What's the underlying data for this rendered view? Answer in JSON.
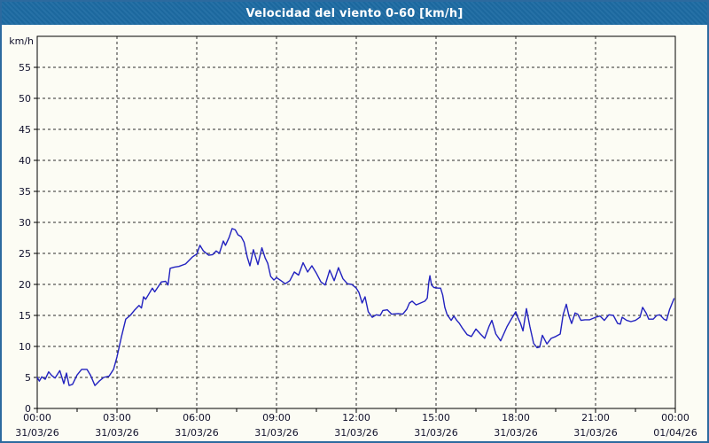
{
  "title_bar": {
    "text": "Velocidad del viento 0-60 [km/h]",
    "bg_color": "#1d6ba3",
    "fg_color": "#ffffff"
  },
  "frame": {
    "outer_border_color": "#2c6a9f",
    "page_bg_color": "#fcfcf4",
    "grid_color": "#2b2b2b",
    "axis_color": "#000000",
    "label_color": "#11112b"
  },
  "chart_data": {
    "type": "line",
    "title": "Velocidad del viento 0-60 [km/h]",
    "xlabel": "",
    "ylabel": "km/h",
    "ylim": [
      0,
      60
    ],
    "xlim_hours": [
      0,
      24
    ],
    "grid": true,
    "legend": "none",
    "line_color": "#2121bf",
    "y_ticks": [
      0,
      5,
      10,
      15,
      20,
      25,
      30,
      35,
      40,
      45,
      50,
      55
    ],
    "x_ticks": [
      {
        "hour": 0,
        "time": "00:00",
        "date": "31/03/26"
      },
      {
        "hour": 3,
        "time": "03:00",
        "date": "31/03/26"
      },
      {
        "hour": 6,
        "time": "06:00",
        "date": "31/03/26"
      },
      {
        "hour": 9,
        "time": "09:00",
        "date": "31/03/26"
      },
      {
        "hour": 12,
        "time": "12:00",
        "date": "31/03/26"
      },
      {
        "hour": 15,
        "time": "15:00",
        "date": "31/03/26"
      },
      {
        "hour": 18,
        "time": "18:00",
        "date": "31/03/26"
      },
      {
        "hour": 21,
        "time": "21:00",
        "date": "31/03/26"
      },
      {
        "hour": 24,
        "time": "00:00",
        "date": "01/04/26"
      }
    ],
    "x_minor_ticks_hours": [
      1.5,
      4.5,
      7.5,
      10.5,
      13.5,
      16.5,
      19.5,
      22.5
    ],
    "series": [
      {
        "name": "Velocidad del viento",
        "points": [
          [
            0,
            5.0
          ],
          [
            0.08,
            4.4
          ],
          [
            0.17,
            5.1
          ],
          [
            0.3,
            4.7
          ],
          [
            0.43,
            5.9
          ],
          [
            0.55,
            5.3
          ],
          [
            0.67,
            4.9
          ],
          [
            0.85,
            6.1
          ],
          [
            1.0,
            4.0
          ],
          [
            1.1,
            5.7
          ],
          [
            1.2,
            3.7
          ],
          [
            1.33,
            3.9
          ],
          [
            1.5,
            5.4
          ],
          [
            1.67,
            6.3
          ],
          [
            1.87,
            6.3
          ],
          [
            2.0,
            5.4
          ],
          [
            2.17,
            3.7
          ],
          [
            2.33,
            4.4
          ],
          [
            2.5,
            5.0
          ],
          [
            2.7,
            5.2
          ],
          [
            2.87,
            6.3
          ],
          [
            3.0,
            8.3
          ],
          [
            3.17,
            11.6
          ],
          [
            3.33,
            14.4
          ],
          [
            3.5,
            15.0
          ],
          [
            3.67,
            15.9
          ],
          [
            3.83,
            16.6
          ],
          [
            3.92,
            16.2
          ],
          [
            4.0,
            18.0
          ],
          [
            4.08,
            17.6
          ],
          [
            4.33,
            19.4
          ],
          [
            4.42,
            18.8
          ],
          [
            4.67,
            20.4
          ],
          [
            4.83,
            20.5
          ],
          [
            4.92,
            19.9
          ],
          [
            5.0,
            22.6
          ],
          [
            5.17,
            22.8
          ],
          [
            5.33,
            22.9
          ],
          [
            5.58,
            23.3
          ],
          [
            5.83,
            24.4
          ],
          [
            6.0,
            24.9
          ],
          [
            6.12,
            26.3
          ],
          [
            6.25,
            25.4
          ],
          [
            6.45,
            24.7
          ],
          [
            6.6,
            24.8
          ],
          [
            6.73,
            25.4
          ],
          [
            6.85,
            25.0
          ],
          [
            7.0,
            27.0
          ],
          [
            7.08,
            26.3
          ],
          [
            7.22,
            27.6
          ],
          [
            7.33,
            29.0
          ],
          [
            7.45,
            28.8
          ],
          [
            7.55,
            28.0
          ],
          [
            7.67,
            27.7
          ],
          [
            7.78,
            26.8
          ],
          [
            7.9,
            24.4
          ],
          [
            8.0,
            23.0
          ],
          [
            8.13,
            25.6
          ],
          [
            8.3,
            23.2
          ],
          [
            8.45,
            25.9
          ],
          [
            8.57,
            24.3
          ],
          [
            8.67,
            23.4
          ],
          [
            8.78,
            21.3
          ],
          [
            8.9,
            20.7
          ],
          [
            9.0,
            21.1
          ],
          [
            9.17,
            20.6
          ],
          [
            9.33,
            20.1
          ],
          [
            9.5,
            20.6
          ],
          [
            9.67,
            22.0
          ],
          [
            9.83,
            21.5
          ],
          [
            10.0,
            23.5
          ],
          [
            10.17,
            22.0
          ],
          [
            10.33,
            23.0
          ],
          [
            10.5,
            21.8
          ],
          [
            10.67,
            20.4
          ],
          [
            10.83,
            19.9
          ],
          [
            11.0,
            22.3
          ],
          [
            11.17,
            20.6
          ],
          [
            11.33,
            22.7
          ],
          [
            11.5,
            20.9
          ],
          [
            11.67,
            20.1
          ],
          [
            11.83,
            20.0
          ],
          [
            12.0,
            19.4
          ],
          [
            12.1,
            18.7
          ],
          [
            12.22,
            17.0
          ],
          [
            12.33,
            18.0
          ],
          [
            12.45,
            15.6
          ],
          [
            12.6,
            14.7
          ],
          [
            12.75,
            15.1
          ],
          [
            12.9,
            15.0
          ],
          [
            13.0,
            15.8
          ],
          [
            13.17,
            15.9
          ],
          [
            13.33,
            15.2
          ],
          [
            13.58,
            15.3
          ],
          [
            13.75,
            15.2
          ],
          [
            13.9,
            16.0
          ],
          [
            14.0,
            17.0
          ],
          [
            14.1,
            17.3
          ],
          [
            14.25,
            16.7
          ],
          [
            14.42,
            17.0
          ],
          [
            14.58,
            17.3
          ],
          [
            14.67,
            17.8
          ],
          [
            14.73,
            20.4
          ],
          [
            14.77,
            21.4
          ],
          [
            14.83,
            19.9
          ],
          [
            14.92,
            19.5
          ],
          [
            15.08,
            19.4
          ],
          [
            15.17,
            19.4
          ],
          [
            15.25,
            18.3
          ],
          [
            15.33,
            16.3
          ],
          [
            15.42,
            15.1
          ],
          [
            15.57,
            14.2
          ],
          [
            15.67,
            14.9
          ],
          [
            15.78,
            14.2
          ],
          [
            15.88,
            13.7
          ],
          [
            16.0,
            12.9
          ],
          [
            16.17,
            11.9
          ],
          [
            16.33,
            11.6
          ],
          [
            16.5,
            12.8
          ],
          [
            16.67,
            12.0
          ],
          [
            16.83,
            11.3
          ],
          [
            17.0,
            13.3
          ],
          [
            17.1,
            14.2
          ],
          [
            17.25,
            12.0
          ],
          [
            17.43,
            10.9
          ],
          [
            17.67,
            13.2
          ],
          [
            17.83,
            14.4
          ],
          [
            18.0,
            15.6
          ],
          [
            18.07,
            14.7
          ],
          [
            18.17,
            13.8
          ],
          [
            18.27,
            12.5
          ],
          [
            18.4,
            16.1
          ],
          [
            18.53,
            13.2
          ],
          [
            18.67,
            10.5
          ],
          [
            18.8,
            9.8
          ],
          [
            18.9,
            9.9
          ],
          [
            19.0,
            11.8
          ],
          [
            19.17,
            10.4
          ],
          [
            19.33,
            11.3
          ],
          [
            19.5,
            11.6
          ],
          [
            19.67,
            12.0
          ],
          [
            19.78,
            15.1
          ],
          [
            19.9,
            16.8
          ],
          [
            20.0,
            14.9
          ],
          [
            20.1,
            13.7
          ],
          [
            20.23,
            15.4
          ],
          [
            20.33,
            15.2
          ],
          [
            20.45,
            14.2
          ],
          [
            20.6,
            14.3
          ],
          [
            20.78,
            14.3
          ],
          [
            21.0,
            14.7
          ],
          [
            21.17,
            14.9
          ],
          [
            21.33,
            14.2
          ],
          [
            21.5,
            15.1
          ],
          [
            21.67,
            15.0
          ],
          [
            21.83,
            13.7
          ],
          [
            21.93,
            13.6
          ],
          [
            22.0,
            14.7
          ],
          [
            22.17,
            14.2
          ],
          [
            22.33,
            14.0
          ],
          [
            22.5,
            14.2
          ],
          [
            22.67,
            14.7
          ],
          [
            22.77,
            16.3
          ],
          [
            22.9,
            15.4
          ],
          [
            23.0,
            14.4
          ],
          [
            23.17,
            14.4
          ],
          [
            23.3,
            15.0
          ],
          [
            23.42,
            15.1
          ],
          [
            23.57,
            14.4
          ],
          [
            23.67,
            14.2
          ],
          [
            23.78,
            15.9
          ],
          [
            23.95,
            17.7
          ]
        ]
      }
    ]
  }
}
